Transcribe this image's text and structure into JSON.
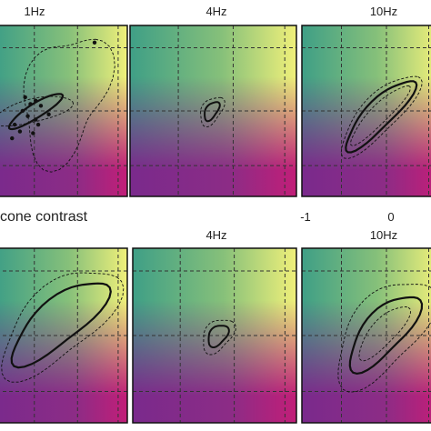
{
  "chart_data": [
    {
      "type": "contour",
      "panel": "top-left",
      "title": "1Hz",
      "grid": "dashed 3x3",
      "contours": [
        {
          "level": "outer",
          "style": "dashed",
          "shape": "large irregular loop extending up-right"
        },
        {
          "level": "middle",
          "style": "dashed",
          "shape": "ellipse"
        },
        {
          "level": "inner",
          "style": "solid",
          "shape": "small ellipse tilted up-right"
        }
      ],
      "points": 14
    },
    {
      "type": "contour",
      "panel": "top-middle",
      "title": "4Hz",
      "grid": "dashed 3x3",
      "contours": [
        {
          "level": "outer",
          "style": "dashed",
          "shape": "small tilted blob"
        },
        {
          "level": "inner",
          "style": "solid",
          "shape": "small tilted blob"
        }
      ]
    },
    {
      "type": "contour",
      "panel": "top-right",
      "title": "10Hz",
      "grid": "dashed 3x3",
      "contours": [
        {
          "level": "outer",
          "style": "dashed",
          "shape": "elongated tilted blob"
        },
        {
          "level": "inner",
          "style": "solid",
          "shape": "elongated tilted blob"
        }
      ]
    },
    {
      "type": "contour",
      "panel": "bottom-left",
      "title": "",
      "grid": "dashed 3x3",
      "contours": [
        {
          "level": "outer",
          "style": "dashed",
          "shape": "large elongated tilted blob"
        },
        {
          "level": "inner",
          "style": "solid",
          "shape": "elongated tilted blob"
        }
      ]
    },
    {
      "type": "contour",
      "panel": "bottom-middle",
      "title": "4Hz",
      "grid": "dashed 3x3",
      "contours": [
        {
          "level": "outer",
          "style": "dashed",
          "shape": "small tilted blob"
        },
        {
          "level": "inner",
          "style": "solid",
          "shape": "small tilted blob"
        }
      ]
    },
    {
      "type": "contour",
      "panel": "bottom-right",
      "title": "10Hz",
      "grid": "dashed 3x3",
      "contours": [
        {
          "level": "outer",
          "style": "dashed",
          "shape": "large elongated tilted blob"
        },
        {
          "level": "inner",
          "style": "solid",
          "shape": "elongated tilted blob"
        }
      ]
    }
  ],
  "labels": {
    "axis_text": "cone contrast",
    "tick_neg": "-1",
    "tick_zero": "0"
  },
  "colors": {
    "top_left": "#d8e37a",
    "top_right": "#f0f07a",
    "bottom_left": "#7a2a8c",
    "bottom_right": "#c21e78",
    "mid": "#5e8f8a",
    "grid": "#333333",
    "frame": "#111111"
  }
}
